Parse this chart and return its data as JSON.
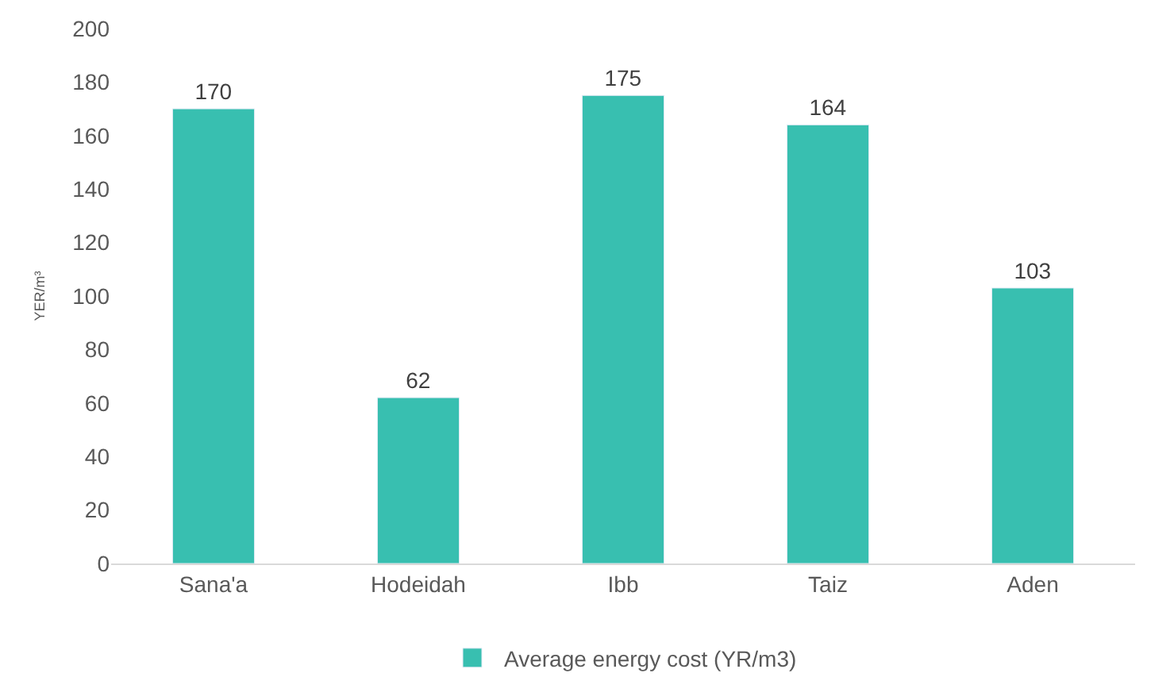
{
  "chart_data": {
    "type": "bar",
    "ylabel": "YER/m³",
    "categories": [
      "Sana'a",
      "Hodeidah",
      "Ibb",
      "Taiz",
      "Aden"
    ],
    "series": [
      {
        "name": "Average energy cost (YR/m3)",
        "color": "#38bfb0",
        "values": [
          170,
          62,
          175,
          164,
          103
        ]
      }
    ],
    "ylim": [
      0,
      200
    ],
    "yticks": [
      0,
      20,
      40,
      60,
      80,
      100,
      120,
      140,
      160,
      180,
      200
    ],
    "legend": "bottom",
    "data_labels": true
  }
}
